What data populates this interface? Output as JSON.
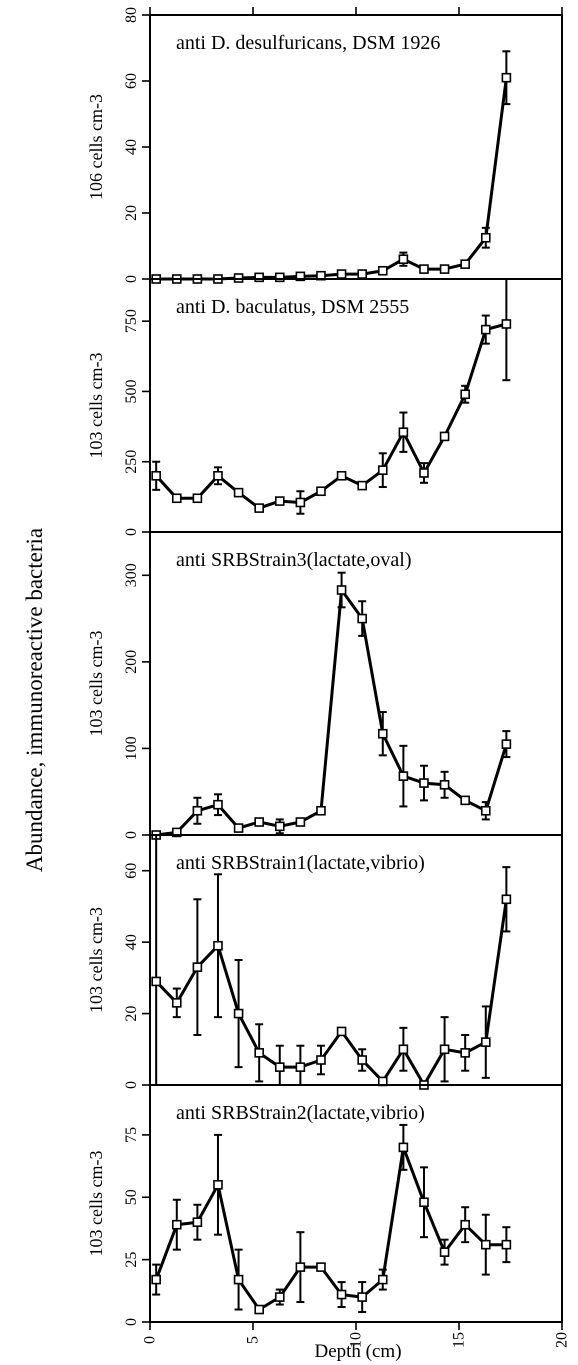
{
  "figure": {
    "y_axis_title": "Abundance, immunoreactive bacteria",
    "x_axis_title": "Depth (cm)"
  },
  "chart_data": [
    {
      "type": "line",
      "title": "anti D. desulfuricans, DSM 1926",
      "xlabel": "Depth (cm)",
      "ylabel": "106 cells cm-3",
      "xlim": [
        0,
        20
      ],
      "ylim": [
        0,
        80
      ],
      "xticks": [
        0,
        5,
        10,
        15,
        20
      ],
      "yticks": [
        0,
        20,
        40,
        60,
        80
      ],
      "x": [
        0.3,
        1.3,
        2.3,
        3.3,
        4.3,
        5.3,
        6.3,
        7.3,
        8.3,
        9.3,
        10.3,
        11.3,
        12.3,
        13.3,
        14.3,
        15.3,
        16.3,
        17.3
      ],
      "y": [
        0,
        0,
        0,
        0,
        0.3,
        0.5,
        0.5,
        0.8,
        1,
        1.5,
        1.5,
        2.5,
        6,
        3,
        3,
        4.5,
        12.5,
        61
      ],
      "err": [
        0,
        0,
        0,
        0,
        0,
        0,
        0,
        0,
        0,
        0.5,
        0,
        0,
        2,
        0,
        0,
        0,
        3,
        8
      ]
    },
    {
      "type": "line",
      "title": "anti D. baculatus, DSM 2555",
      "xlabel": "Depth (cm)",
      "ylabel": "103 cells cm-3",
      "xlim": [
        0,
        20
      ],
      "ylim": [
        0,
        900
      ],
      "xticks": [
        0,
        5,
        10,
        15,
        20
      ],
      "yticks": [
        0,
        250,
        500,
        750
      ],
      "x": [
        0.3,
        1.3,
        2.3,
        3.3,
        4.3,
        5.3,
        6.3,
        7.3,
        8.3,
        9.3,
        10.3,
        11.3,
        12.3,
        13.3,
        14.3,
        15.3,
        16.3,
        17.3
      ],
      "y": [
        200,
        120,
        120,
        200,
        140,
        85,
        110,
        105,
        145,
        200,
        165,
        220,
        355,
        210,
        340,
        490,
        720,
        740
      ],
      "err": [
        50,
        0,
        0,
        30,
        0,
        0,
        0,
        40,
        0,
        0,
        0,
        60,
        70,
        35,
        0,
        30,
        50,
        200
      ]
    },
    {
      "type": "line",
      "title": "anti SRBStrain3(lactate,oval)",
      "xlabel": "Depth (cm)",
      "ylabel": "103 cells cm-3",
      "xlim": [
        0,
        20
      ],
      "ylim": [
        0,
        350
      ],
      "xticks": [
        0,
        5,
        10,
        15,
        20
      ],
      "yticks": [
        0,
        100,
        200,
        300
      ],
      "x": [
        0.3,
        1.3,
        2.3,
        3.3,
        4.3,
        5.3,
        6.3,
        7.3,
        8.3,
        9.3,
        10.3,
        11.3,
        12.3,
        13.3,
        14.3,
        15.3,
        16.3,
        17.3
      ],
      "y": [
        0,
        3,
        28,
        35,
        8,
        15,
        10,
        15,
        28,
        283,
        250,
        117,
        68,
        60,
        58,
        40,
        28,
        105
      ],
      "err": [
        0,
        0,
        15,
        12,
        0,
        0,
        8,
        0,
        0,
        20,
        20,
        25,
        35,
        20,
        15,
        0,
        10,
        15
      ]
    },
    {
      "type": "line",
      "title": "anti SRBStrain1(lactate,vibrio)",
      "xlabel": "Depth (cm)",
      "ylabel": "103 cells cm-3",
      "xlim": [
        0,
        20
      ],
      "ylim": [
        0,
        70
      ],
      "xticks": [
        0,
        5,
        10,
        15,
        20
      ],
      "yticks": [
        0,
        20,
        40,
        60
      ],
      "x": [
        0.3,
        1.3,
        2.3,
        3.3,
        4.3,
        5.3,
        6.3,
        7.3,
        8.3,
        9.3,
        10.3,
        11.3,
        12.3,
        13.3,
        14.3,
        15.3,
        16.3,
        17.3
      ],
      "y": [
        29,
        23,
        33,
        39,
        20,
        9,
        5,
        5,
        7,
        15,
        7,
        1,
        10,
        -1,
        10,
        9,
        12,
        52
      ],
      "err": [
        43,
        4,
        19,
        20,
        15,
        8,
        6,
        6,
        4,
        0,
        3,
        0,
        6,
        0,
        9,
        5,
        10,
        9
      ]
    },
    {
      "type": "line",
      "title": "anti SRBStrain2(lactate,vibrio)",
      "xlabel": "Depth (cm)",
      "ylabel": "103 cells cm-3",
      "xlim": [
        0,
        20
      ],
      "ylim": [
        0,
        95
      ],
      "xticks": [
        0,
        5,
        10,
        15,
        20
      ],
      "yticks": [
        0,
        25,
        50,
        75
      ],
      "x": [
        0.3,
        1.3,
        2.3,
        3.3,
        4.3,
        5.3,
        6.3,
        7.3,
        8.3,
        9.3,
        10.3,
        11.3,
        12.3,
        13.3,
        14.3,
        15.3,
        16.3,
        17.3
      ],
      "y": [
        17,
        39,
        40,
        55,
        17,
        5,
        10,
        22,
        22,
        11,
        10,
        17,
        70,
        48,
        28,
        39,
        31,
        31
      ],
      "err": [
        6,
        10,
        7,
        20,
        12,
        0,
        3,
        14,
        0,
        5,
        6,
        4,
        9,
        14,
        5,
        7,
        12,
        7
      ]
    }
  ]
}
